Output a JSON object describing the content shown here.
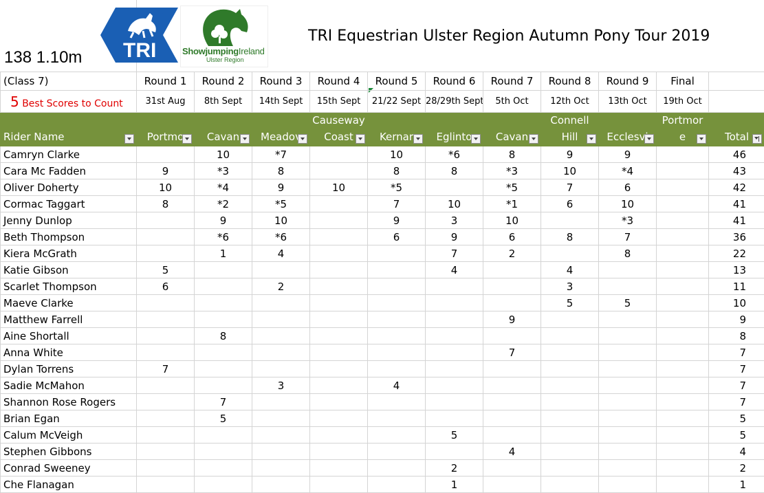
{
  "header": {
    "class_title": "138 1.10m",
    "main_title": "TRI Equestrian Ulster Region Autumn Pony Tour 2019",
    "logo_tri_text": "TRI",
    "logo_sji_text_a": "Showjumping",
    "logo_sji_text_b": "Ireland",
    "logo_sji_sub": "Ulster Region"
  },
  "class_label": "(Class 7)",
  "best_scores_num": "5",
  "best_scores_text": "Best Scores to Count",
  "rounds": [
    "Round 1",
    "Round 2",
    "Round 3",
    "Round 4",
    "Round 5",
    "Round 6",
    "Round 7",
    "Round 8",
    "Round 9",
    "Final"
  ],
  "dates": [
    "31st Aug",
    "8th Sept",
    "14th Sept",
    "15th Sept",
    "21/22 Sept",
    "28/29th Sept",
    "5th Oct",
    "12th Oct",
    "13th Oct",
    "19th Oct"
  ],
  "columns": {
    "rider": "Rider Name",
    "venues": [
      {
        "l1": "",
        "l2": "Portmo"
      },
      {
        "l1": "",
        "l2": "Cavan"
      },
      {
        "l1": "",
        "l2": "Meadov"
      },
      {
        "l1": "Causeway",
        "l2": "Coast"
      },
      {
        "l1": "",
        "l2": "Kernar"
      },
      {
        "l1": "",
        "l2": "Eglinto"
      },
      {
        "l1": "",
        "l2": "Cavan"
      },
      {
        "l1": "Connell",
        "l2": "Hill"
      },
      {
        "l1": "",
        "l2": "Ecclesvi"
      },
      {
        "l1": "Portmor",
        "l2": "e"
      }
    ],
    "total": "Total"
  },
  "rows": [
    {
      "name": "Camryn Clarke",
      "scores": [
        "",
        "10",
        "*7",
        "",
        "10",
        "*6",
        "8",
        "9",
        "9",
        ""
      ],
      "total": "46"
    },
    {
      "name": "Cara Mc Fadden",
      "scores": [
        "9",
        "*3",
        "8",
        "",
        "8",
        "8",
        "*3",
        "10",
        "*4",
        ""
      ],
      "total": "43"
    },
    {
      "name": "Oliver Doherty",
      "scores": [
        "10",
        "*4",
        "9",
        "10",
        "*5",
        "",
        "*5",
        "7",
        "6",
        ""
      ],
      "total": "42"
    },
    {
      "name": "Cormac Taggart",
      "scores": [
        "8",
        "*2",
        "*5",
        "",
        "7",
        "10",
        "*1",
        "6",
        "10",
        ""
      ],
      "total": "41"
    },
    {
      "name": "Jenny Dunlop",
      "scores": [
        "",
        "9",
        "10",
        "",
        "9",
        "3",
        "10",
        "",
        "*3",
        ""
      ],
      "total": "41"
    },
    {
      "name": "Beth Thompson",
      "scores": [
        "",
        "*6",
        "*6",
        "",
        "6",
        "9",
        "6",
        "8",
        "7",
        ""
      ],
      "total": "36"
    },
    {
      "name": "Kiera McGrath",
      "scores": [
        "",
        "1",
        "4",
        "",
        "",
        "7",
        "2",
        "",
        "8",
        ""
      ],
      "total": "22"
    },
    {
      "name": "Katie Gibson",
      "scores": [
        "5",
        "",
        "",
        "",
        "",
        "4",
        "",
        "4",
        "",
        ""
      ],
      "total": "13"
    },
    {
      "name": "Scarlet Thompson",
      "scores": [
        "6",
        "",
        "2",
        "",
        "",
        "",
        "",
        "3",
        "",
        ""
      ],
      "total": "11"
    },
    {
      "name": "Maeve Clarke",
      "scores": [
        "",
        "",
        "",
        "",
        "",
        "",
        "",
        "5",
        "5",
        ""
      ],
      "total": "10"
    },
    {
      "name": "Matthew Farrell",
      "scores": [
        "",
        "",
        "",
        "",
        "",
        "",
        "9",
        "",
        "",
        ""
      ],
      "total": "9"
    },
    {
      "name": "Aine Shortall",
      "scores": [
        "",
        "8",
        "",
        "",
        "",
        "",
        "",
        "",
        "",
        ""
      ],
      "total": "8"
    },
    {
      "name": "Anna White",
      "scores": [
        "",
        "",
        "",
        "",
        "",
        "",
        "7",
        "",
        "",
        ""
      ],
      "total": "7"
    },
    {
      "name": "Dylan Torrens",
      "scores": [
        "7",
        "",
        "",
        "",
        "",
        "",
        "",
        "",
        "",
        ""
      ],
      "total": "7"
    },
    {
      "name": "Sadie McMahon",
      "scores": [
        "",
        "",
        "3",
        "",
        "4",
        "",
        "",
        "",
        "",
        ""
      ],
      "total": "7"
    },
    {
      "name": "Shannon Rose Rogers",
      "scores": [
        "",
        "7",
        "",
        "",
        "",
        "",
        "",
        "",
        "",
        ""
      ],
      "total": "7"
    },
    {
      "name": "Brian Egan",
      "scores": [
        "",
        "5",
        "",
        "",
        "",
        "",
        "",
        "",
        "",
        ""
      ],
      "total": "5"
    },
    {
      "name": "Calum McVeigh",
      "scores": [
        "",
        "",
        "",
        "",
        "",
        "5",
        "",
        "",
        "",
        ""
      ],
      "total": "5"
    },
    {
      "name": "Stephen Gibbons",
      "scores": [
        "",
        "",
        "",
        "",
        "",
        "",
        "4",
        "",
        "",
        ""
      ],
      "total": "4"
    },
    {
      "name": "Conrad Sweeney",
      "scores": [
        "",
        "",
        "",
        "",
        "",
        "2",
        "",
        "",
        "",
        ""
      ],
      "total": "2"
    },
    {
      "name": "Che Flanagan",
      "scores": [
        "",
        "",
        "",
        "",
        "",
        "1",
        "",
        "",
        "",
        ""
      ],
      "total": "1"
    }
  ],
  "colors": {
    "header_bg": "#76923c",
    "best_scores_red": "#e00000",
    "tri_blue": "#1a5fb4",
    "sji_green": "#2f7a2a"
  }
}
